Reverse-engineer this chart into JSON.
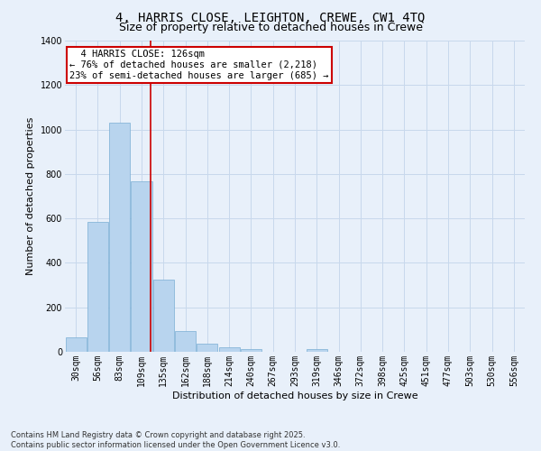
{
  "title_line1": "4, HARRIS CLOSE, LEIGHTON, CREWE, CW1 4TQ",
  "title_line2": "Size of property relative to detached houses in Crewe",
  "xlabel": "Distribution of detached houses by size in Crewe",
  "ylabel": "Number of detached properties",
  "bar_color": "#b8d4ee",
  "bar_edge_color": "#7aaed4",
  "background_color": "#e8f0fa",
  "grid_color": "#c8d8ec",
  "categories": [
    "30sqm",
    "56sqm",
    "83sqm",
    "109sqm",
    "135sqm",
    "162sqm",
    "188sqm",
    "214sqm",
    "240sqm",
    "267sqm",
    "293sqm",
    "319sqm",
    "346sqm",
    "372sqm",
    "398sqm",
    "425sqm",
    "451sqm",
    "477sqm",
    "503sqm",
    "530sqm",
    "556sqm"
  ],
  "values": [
    65,
    585,
    1030,
    765,
    325,
    95,
    38,
    22,
    13,
    0,
    0,
    13,
    0,
    0,
    0,
    0,
    0,
    0,
    0,
    0,
    0
  ],
  "ylim": [
    0,
    1400
  ],
  "yticks": [
    0,
    200,
    400,
    600,
    800,
    1000,
    1200,
    1400
  ],
  "annotation_text": "  4 HARRIS CLOSE: 126sqm\n← 76% of detached houses are smaller (2,218)\n23% of semi-detached houses are larger (685) →",
  "red_line_x": 3.42,
  "annotation_box_color": "#ffffff",
  "annotation_border_color": "#cc0000",
  "red_line_color": "#cc0000",
  "footer_text": "Contains HM Land Registry data © Crown copyright and database right 2025.\nContains public sector information licensed under the Open Government Licence v3.0.",
  "title_fontsize": 10,
  "subtitle_fontsize": 9,
  "axis_label_fontsize": 8,
  "tick_fontsize": 7,
  "annotation_fontsize": 7.5,
  "footer_fontsize": 6
}
